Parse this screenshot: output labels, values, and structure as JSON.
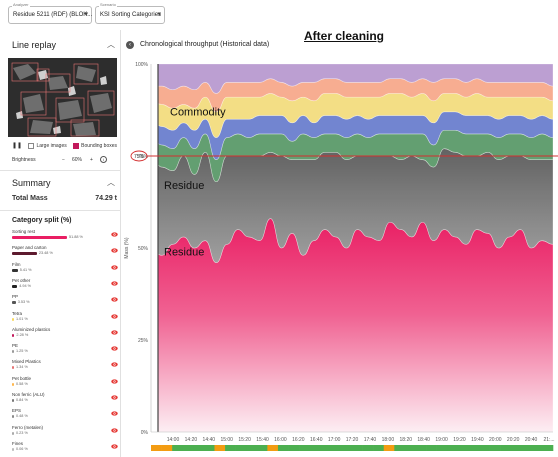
{
  "header": {
    "analyzer": {
      "label": "Analyzer",
      "value": "Residue 5211 (RDF) (BLOK..."
    },
    "scenario": {
      "label": "Scenario",
      "value": "KSI Sorting Categories"
    },
    "overlay_title": "After cleaning"
  },
  "sidebar": {
    "line_replay": {
      "title": "Line replay",
      "large_images_label": "Large images",
      "bounding_boxes_label": "Bounding boxes",
      "brightness_label": "Brightness",
      "brightness_value": "60%"
    },
    "summary": {
      "title": "Summary",
      "total_label": "Total Mass",
      "total_value": "74.29 t",
      "category_title": "Category split (%)",
      "categories": [
        {
          "name": "Sorting rest",
          "pct_label": "51.88 %",
          "fraction": 0.5188,
          "color": "#e91e63"
        },
        {
          "name": "Paper and carton",
          "pct_label": "23.48 %",
          "fraction": 0.2348,
          "color": "#5d1a2e"
        },
        {
          "name": "Film",
          "pct_label": "5.41 %",
          "fraction": 0.0541,
          "color": "#333333"
        },
        {
          "name": "Pet other",
          "pct_label": "4.94 %",
          "fraction": 0.0494,
          "color": "#222222"
        },
        {
          "name": "PP",
          "pct_label": "3.53 %",
          "fraction": 0.0353,
          "color": "#555555"
        },
        {
          "name": "Tetra",
          "pct_label": "1.01 %",
          "fraction": 0.0101,
          "color": "#f9d85f"
        },
        {
          "name": "Aluminized plastics",
          "pct_label": "2.28 %",
          "fraction": 0.0228,
          "color": "#c2185b"
        },
        {
          "name": "PE",
          "pct_label": "1.25 %",
          "fraction": 0.0125,
          "color": "#999999"
        },
        {
          "name": "Mixed Plastics",
          "pct_label": "1.34 %",
          "fraction": 0.0134,
          "color": "#e57373"
        },
        {
          "name": "Pet bottle",
          "pct_label": "0.58 %",
          "fraction": 0.0058,
          "color": "#ffb74d"
        },
        {
          "name": "Non ferric (ALU)",
          "pct_label": "0.84 %",
          "fraction": 0.0084,
          "color": "#777777"
        },
        {
          "name": "EPS",
          "pct_label": "0.48 %",
          "fraction": 0.0048,
          "color": "#888888"
        },
        {
          "name": "Ferro (metalen)",
          "pct_label": "0.23 %",
          "fraction": 0.0023,
          "color": "#aaaaaa"
        },
        {
          "name": "Fines",
          "pct_label": "0.06 %",
          "fraction": 0.0006,
          "color": "#bbbbbb"
        }
      ]
    }
  },
  "chart_header": {
    "title": "Chronological throughput (Historical data)"
  },
  "chart_data": {
    "type": "area",
    "title": "Chronological throughput (Historical data)",
    "ylabel": "Mass (%)",
    "ylim": [
      0,
      100
    ],
    "y_ticks": [
      "0%",
      "25%",
      "50%",
      "75%",
      "100%"
    ],
    "x_ticks": [
      "14:00",
      "14:20",
      "14:40",
      "15:00",
      "15:20",
      "15:40",
      "16:00",
      "16:20",
      "16:40",
      "17:00",
      "17:20",
      "17:40",
      "18:00",
      "18:20",
      "18:40",
      "19:00",
      "19:20",
      "19:40",
      "20:00",
      "20:20",
      "20:40",
      "21:..."
    ],
    "annotations": [
      {
        "text": "Commodity",
        "y": 86
      },
      {
        "text": "Residue",
        "y": 66
      },
      {
        "text": "Residue",
        "y": 48
      },
      {
        "text": "75%",
        "y": 75
      }
    ],
    "reference_line": {
      "y": 75,
      "color": "#d32f2f"
    },
    "series": [
      {
        "color": "#e91e63",
        "values": [
          50,
          48,
          51,
          53,
          50,
          52,
          46,
          51,
          55,
          53,
          52,
          58,
          50,
          54,
          48,
          52,
          55,
          53,
          50,
          55,
          53,
          52,
          57,
          55,
          53,
          57,
          52,
          55,
          53,
          51,
          55,
          54,
          50,
          53,
          55,
          50,
          52,
          51
        ]
      },
      {
        "color": "#707070",
        "values": [
          25,
          24,
          20,
          22,
          20,
          24,
          22,
          24,
          20,
          22,
          23,
          18,
          25,
          20,
          26,
          22,
          21,
          23,
          24,
          20,
          22,
          23,
          18,
          19,
          22,
          17,
          20,
          22,
          23,
          24,
          20,
          22,
          24,
          22,
          20,
          24,
          22,
          23
        ]
      },
      {
        "color": "#5b9a6a",
        "values": [
          5,
          6,
          6,
          5,
          7,
          5,
          6,
          5,
          6,
          5,
          6,
          5,
          6,
          5,
          7,
          6,
          5,
          5,
          6,
          6,
          5,
          6,
          6,
          7,
          6,
          7,
          6,
          5,
          6,
          6,
          6,
          5,
          6,
          6,
          6,
          6,
          7,
          6
        ]
      },
      {
        "color": "#6b7fce",
        "values": [
          5,
          5,
          5,
          4,
          5,
          4,
          6,
          5,
          4,
          5,
          5,
          5,
          5,
          5,
          5,
          4,
          5,
          5,
          5,
          5,
          5,
          5,
          5,
          5,
          5,
          5,
          6,
          5,
          5,
          5,
          5,
          5,
          5,
          5,
          5,
          5,
          5,
          5
        ]
      },
      {
        "color": "#f3dd7f",
        "values": [
          5,
          6,
          6,
          5,
          6,
          6,
          7,
          6,
          6,
          6,
          5,
          6,
          5,
          6,
          5,
          6,
          6,
          6,
          6,
          5,
          6,
          5,
          6,
          6,
          5,
          6,
          6,
          5,
          5,
          5,
          6,
          5,
          6,
          5,
          5,
          6,
          5,
          5
        ]
      },
      {
        "color": "#f7a98c",
        "values": [
          4,
          5,
          5,
          5,
          5,
          4,
          5,
          4,
          4,
          4,
          4,
          4,
          4,
          4,
          4,
          5,
          4,
          4,
          4,
          4,
          4,
          4,
          4,
          4,
          4,
          4,
          5,
          4,
          4,
          4,
          4,
          4,
          4,
          4,
          4,
          4,
          4,
          4
        ]
      },
      {
        "color": "#b99ad0",
        "values": [
          6,
          6,
          7,
          6,
          7,
          5,
          8,
          5,
          5,
          5,
          5,
          4,
          5,
          6,
          5,
          5,
          4,
          4,
          5,
          5,
          5,
          5,
          4,
          4,
          5,
          4,
          5,
          4,
          4,
          5,
          4,
          5,
          5,
          5,
          5,
          5,
          5,
          6
        ]
      }
    ],
    "timeline_bar": [
      "#f39c12",
      "#f39c12",
      "#4caf50",
      "#4caf50",
      "#4caf50",
      "#4caf50",
      "#f39c12",
      "#4caf50",
      "#4caf50",
      "#4caf50",
      "#4caf50",
      "#f39c12",
      "#4caf50",
      "#4caf50",
      "#4caf50",
      "#4caf50",
      "#4caf50",
      "#4caf50",
      "#4caf50",
      "#4caf50",
      "#4caf50",
      "#4caf50",
      "#f39c12",
      "#4caf50",
      "#4caf50",
      "#4caf50",
      "#4caf50",
      "#4caf50",
      "#4caf50",
      "#4caf50",
      "#4caf50",
      "#4caf50",
      "#4caf50",
      "#4caf50",
      "#4caf50",
      "#4caf50",
      "#4caf50",
      "#4caf50"
    ]
  }
}
